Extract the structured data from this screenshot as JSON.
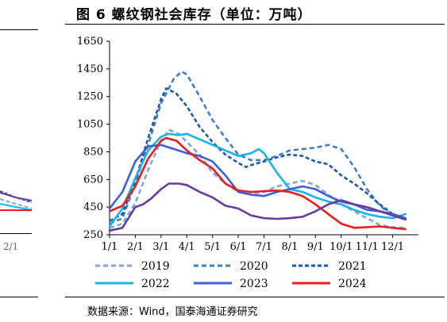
{
  "title": "图 6 螺纹钢社会库存（单位：万吨）",
  "source": "数据来源：Wind，国泰海通证券研究",
  "left_fragment": {
    "tick_label": "2/1"
  },
  "colors": {
    "2019": "#7ea6dc",
    "2020": "#3d7dcc",
    "2021": "#1a5aa8",
    "2022": "#1ab4ec",
    "2023": "#3c5fe0",
    "2024": "#ee1c1c",
    "purple": "#6a3aa0"
  },
  "chart_data": {
    "type": "line",
    "title": "",
    "xlabel": "",
    "ylabel": "",
    "ylim": [
      250,
      1650
    ],
    "yticks": [
      250,
      450,
      650,
      850,
      1050,
      1250,
      1450,
      1650
    ],
    "xlim": [
      1,
      13
    ],
    "xticks": [
      {
        "x": 1,
        "label": "1/1"
      },
      {
        "x": 2,
        "label": "2/1"
      },
      {
        "x": 3,
        "label": "3/1"
      },
      {
        "x": 4,
        "label": "4/1"
      },
      {
        "x": 5,
        "label": "5/1"
      },
      {
        "x": 6,
        "label": "6/1"
      },
      {
        "x": 7,
        "label": "7/1"
      },
      {
        "x": 8,
        "label": "8/1"
      },
      {
        "x": 9,
        "label": "9/1"
      },
      {
        "x": 10,
        "label": "10/1"
      },
      {
        "x": 11,
        "label": "11/1"
      },
      {
        "x": 12,
        "label": "12/1"
      }
    ],
    "legend": "bottom",
    "series": [
      {
        "name": "2019",
        "style": "dashed",
        "color": "#7ea6dc",
        "points": [
          [
            1,
            300
          ],
          [
            1.5,
            330
          ],
          [
            2,
            480
          ],
          [
            2.5,
            720
          ],
          [
            3,
            930
          ],
          [
            3.3,
            1010
          ],
          [
            3.7,
            980
          ],
          [
            4,
            920
          ],
          [
            4.5,
            830
          ],
          [
            5,
            700
          ],
          [
            5.5,
            620
          ],
          [
            6,
            560
          ],
          [
            6.5,
            545
          ],
          [
            7,
            560
          ],
          [
            7.5,
            600
          ],
          [
            8,
            620
          ],
          [
            8.5,
            640
          ],
          [
            9,
            610
          ],
          [
            9.5,
            540
          ],
          [
            10,
            470
          ],
          [
            10.5,
            420
          ],
          [
            11,
            370
          ],
          [
            11.5,
            320
          ],
          [
            12,
            305
          ],
          [
            12.5,
            300
          ]
        ]
      },
      {
        "name": "2020",
        "style": "dashed",
        "color": "#3d7dcc",
        "points": [
          [
            1,
            330
          ],
          [
            1.5,
            370
          ],
          [
            2,
            620
          ],
          [
            2.5,
            900
          ],
          [
            3,
            1200
          ],
          [
            3.5,
            1380
          ],
          [
            3.8,
            1430
          ],
          [
            4,
            1410
          ],
          [
            4.5,
            1250
          ],
          [
            5,
            1080
          ],
          [
            5.5,
            950
          ],
          [
            6,
            830
          ],
          [
            6.5,
            790
          ],
          [
            7,
            790
          ],
          [
            7.5,
            820
          ],
          [
            8,
            860
          ],
          [
            8.5,
            870
          ],
          [
            9,
            880
          ],
          [
            9.5,
            900
          ],
          [
            10,
            870
          ],
          [
            10.5,
            740
          ],
          [
            11,
            580
          ],
          [
            11.5,
            460
          ],
          [
            12,
            390
          ],
          [
            12.5,
            360
          ]
        ]
      },
      {
        "name": "2021",
        "style": "dashed",
        "color": "#1a5aa8",
        "points": [
          [
            1,
            350
          ],
          [
            1.5,
            400
          ],
          [
            2,
            640
          ],
          [
            2.5,
            950
          ],
          [
            3,
            1230
          ],
          [
            3.2,
            1310
          ],
          [
            3.6,
            1270
          ],
          [
            4,
            1180
          ],
          [
            4.5,
            1030
          ],
          [
            5,
            920
          ],
          [
            5.5,
            830
          ],
          [
            6,
            770
          ],
          [
            6.3,
            740
          ],
          [
            6.6,
            760
          ],
          [
            7,
            780
          ],
          [
            7.5,
            810
          ],
          [
            8,
            830
          ],
          [
            8.5,
            820
          ],
          [
            9,
            780
          ],
          [
            9.5,
            760
          ],
          [
            10,
            680
          ],
          [
            10.5,
            620
          ],
          [
            11,
            550
          ],
          [
            11.5,
            470
          ],
          [
            12,
            400
          ],
          [
            12.5,
            370
          ]
        ]
      },
      {
        "name": "2022",
        "style": "solid",
        "color": "#1ab4ec",
        "points": [
          [
            1,
            310
          ],
          [
            1.5,
            440
          ],
          [
            2,
            660
          ],
          [
            2.5,
            860
          ],
          [
            3,
            960
          ],
          [
            3.3,
            980
          ],
          [
            3.7,
            970
          ],
          [
            4,
            980
          ],
          [
            4.5,
            940
          ],
          [
            5,
            900
          ],
          [
            5.5,
            860
          ],
          [
            6,
            820
          ],
          [
            6.5,
            840
          ],
          [
            6.8,
            870
          ],
          [
            7,
            840
          ],
          [
            7.5,
            700
          ],
          [
            8,
            580
          ],
          [
            8.5,
            560
          ],
          [
            9,
            520
          ],
          [
            9.5,
            490
          ],
          [
            10,
            470
          ],
          [
            10.5,
            430
          ],
          [
            11,
            400
          ],
          [
            11.5,
            380
          ],
          [
            12,
            370
          ],
          [
            12.5,
            400
          ]
        ]
      },
      {
        "name": "2023",
        "style": "solid",
        "color": "#3c5fe0",
        "points": [
          [
            1,
            440
          ],
          [
            1.5,
            560
          ],
          [
            2,
            780
          ],
          [
            2.5,
            890
          ],
          [
            3,
            900
          ],
          [
            3.5,
            870
          ],
          [
            4,
            840
          ],
          [
            4.5,
            820
          ],
          [
            5,
            780
          ],
          [
            5.5,
            680
          ],
          [
            6,
            560
          ],
          [
            6.5,
            540
          ],
          [
            7,
            530
          ],
          [
            7.5,
            560
          ],
          [
            8,
            580
          ],
          [
            8.5,
            600
          ],
          [
            9,
            580
          ],
          [
            9.5,
            530
          ],
          [
            10,
            490
          ],
          [
            10.5,
            470
          ],
          [
            11,
            430
          ],
          [
            11.5,
            420
          ],
          [
            12,
            400
          ],
          [
            12.5,
            370
          ]
        ]
      },
      {
        "name": "2024",
        "style": "solid",
        "color": "#ee1c1c",
        "points": [
          [
            1,
            420
          ],
          [
            1.5,
            460
          ],
          [
            2,
            600
          ],
          [
            2.5,
            800
          ],
          [
            3,
            930
          ],
          [
            3.2,
            950
          ],
          [
            3.6,
            930
          ],
          [
            4,
            860
          ],
          [
            4.5,
            790
          ],
          [
            5,
            730
          ],
          [
            5.5,
            620
          ],
          [
            6,
            570
          ],
          [
            6.5,
            560
          ],
          [
            7,
            565
          ],
          [
            7.5,
            570
          ],
          [
            8,
            560
          ],
          [
            8.5,
            530
          ],
          [
            9,
            470
          ],
          [
            9.5,
            400
          ],
          [
            10,
            330
          ],
          [
            10.5,
            300
          ],
          [
            11,
            305
          ],
          [
            11.5,
            310
          ],
          [
            12,
            300
          ],
          [
            12.5,
            290
          ]
        ]
      },
      {
        "name": "",
        "style": "solid",
        "color": "#6a3aa0",
        "points": [
          [
            1,
            280
          ],
          [
            1.5,
            300
          ],
          [
            2,
            450
          ],
          [
            2.3,
            470
          ],
          [
            2.6,
            510
          ],
          [
            3,
            580
          ],
          [
            3.3,
            620
          ],
          [
            3.7,
            620
          ],
          [
            4,
            610
          ],
          [
            4.5,
            560
          ],
          [
            5,
            520
          ],
          [
            5.5,
            460
          ],
          [
            6,
            440
          ],
          [
            6.5,
            390
          ],
          [
            7,
            370
          ],
          [
            7.5,
            365
          ],
          [
            8,
            370
          ],
          [
            8.5,
            380
          ],
          [
            9,
            420
          ],
          [
            9.5,
            470
          ],
          [
            10,
            500
          ],
          [
            10.5,
            470
          ],
          [
            11,
            450
          ],
          [
            11.5,
            420
          ],
          [
            12,
            390
          ],
          [
            12.5,
            360
          ]
        ]
      }
    ]
  }
}
